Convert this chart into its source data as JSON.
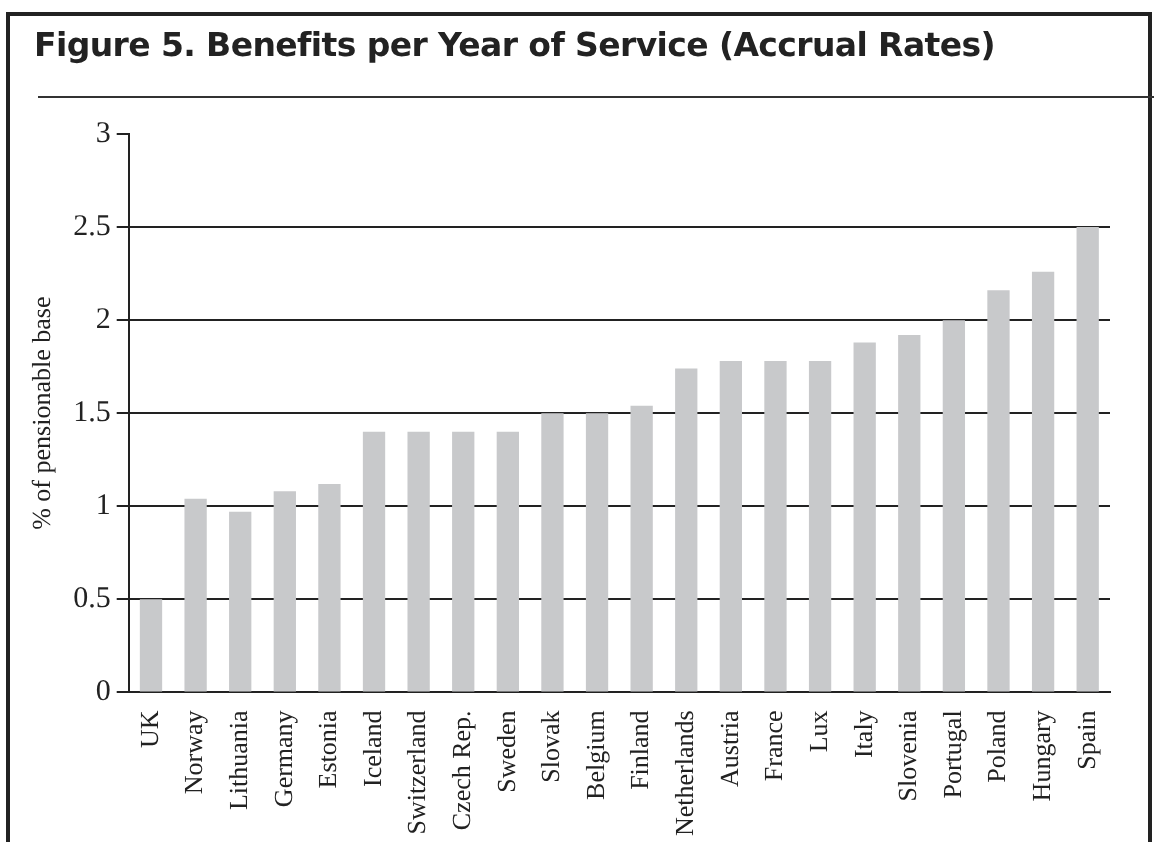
{
  "chart_data": {
    "type": "bar",
    "title": "Figure 5.  Benefits per Year of Service (Accrual Rates)",
    "ylabel": "% of pensionable base",
    "categories": [
      "UK",
      "Norway",
      "Lithuania",
      "Germany",
      "Estonia",
      "Iceland",
      "Switzerland",
      "Czech Rep.",
      "Sweden",
      "Slovak",
      "Belgium",
      "Finland",
      "Netherlands",
      "Austria",
      "France",
      "Lux",
      "Italy",
      "Slovenia",
      "Portugal",
      "Poland",
      "Hungary",
      "Spain"
    ],
    "values": [
      0.5,
      1.04,
      0.97,
      1.08,
      1.12,
      1.4,
      1.4,
      1.4,
      1.4,
      1.5,
      1.5,
      1.54,
      1.74,
      1.78,
      1.78,
      1.78,
      1.88,
      1.92,
      2.0,
      2.16,
      2.26,
      2.5
    ],
    "color": "#c8c9cb",
    "ylim": [
      0,
      3
    ],
    "yticks": [
      0,
      0.5,
      1,
      1.5,
      2,
      2.5,
      3
    ],
    "grid": "y"
  }
}
